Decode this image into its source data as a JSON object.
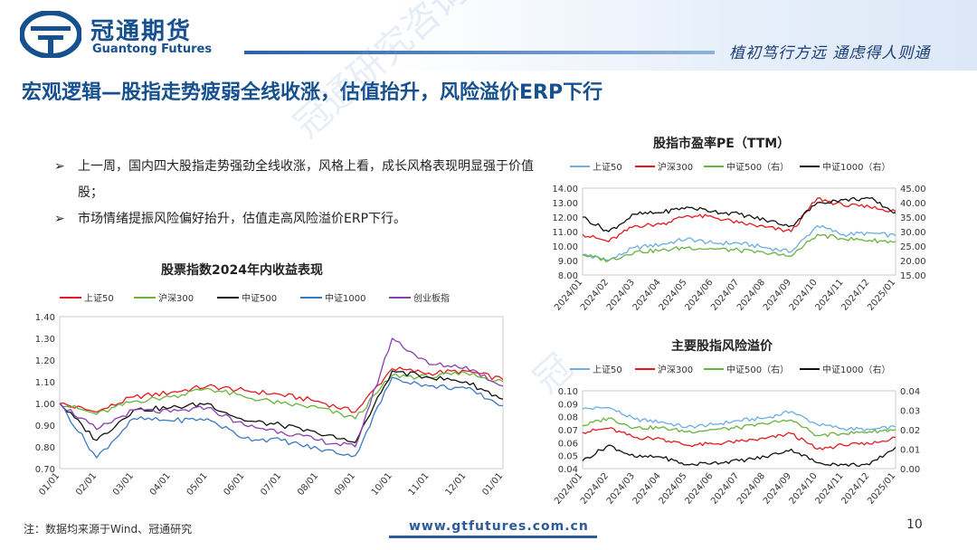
{
  "header": {
    "brand_cn": "冠通期货",
    "brand_en": "Guantong Futures",
    "slogan": "植初笃行方远  通虑得人则通"
  },
  "title": "宏观逻辑—股指走势疲弱全线收涨，估值抬升，风险溢价ERP下行",
  "watermarks": [
    "冠通研究咨询部",
    "冠"
  ],
  "bullets": [
    "上一周，国内四大股指走势强劲全线收涨，风格上看，成长风格表现明显强于价值股；",
    "市场情绪提振风险偏好抬升，估值走高风险溢价ERP下行。"
  ],
  "bullet_marker": "➢",
  "footer": {
    "note": "注：数据均来源于Wind、冠通研究",
    "url": "www.gtfutures.com.cn",
    "page": "10"
  },
  "colors": {
    "brand": "#16508f",
    "sh50": "#e5191f",
    "hs300": "#68b33c",
    "zz500": "#111111",
    "zz1000": "#3b78c1",
    "cyb": "#8a3fb0",
    "sh50_light": "#6aaee3"
  },
  "chart_data": [
    {
      "id": "perf",
      "type": "line",
      "title": "股票指数2024年内收益表现",
      "legend": [
        "上证50",
        "沪深300",
        "中证500",
        "中证1000",
        "创业板指"
      ],
      "categories": [
        "01/01",
        "02/01",
        "03/01",
        "04/01",
        "05/01",
        "06/01",
        "07/01",
        "08/01",
        "09/01",
        "10/01",
        "11/01",
        "12/01",
        "01/01"
      ],
      "ylim": [
        0.7,
        1.4
      ],
      "yticks": [
        "1.40",
        "1.30",
        "1.20",
        "1.10",
        "1.00",
        "0.90",
        "0.80",
        "0.70"
      ],
      "series": [
        {
          "name": "上证50",
          "color": "#e5191f",
          "values": [
            1.0,
            0.96,
            1.03,
            1.05,
            1.08,
            1.06,
            1.04,
            1.01,
            0.96,
            1.16,
            1.14,
            1.15,
            1.11
          ]
        },
        {
          "name": "沪深300",
          "color": "#68b33c",
          "values": [
            1.0,
            0.95,
            1.01,
            1.03,
            1.07,
            1.03,
            1.0,
            0.98,
            0.93,
            1.13,
            1.12,
            1.14,
            1.1
          ]
        },
        {
          "name": "中证500",
          "color": "#111111",
          "values": [
            1.0,
            0.83,
            0.97,
            0.98,
            1.0,
            0.92,
            0.9,
            0.86,
            0.82,
            1.15,
            1.12,
            1.1,
            1.02
          ]
        },
        {
          "name": "中证1000",
          "color": "#3b78c1",
          "values": [
            1.0,
            0.75,
            0.93,
            0.92,
            0.93,
            0.84,
            0.83,
            0.79,
            0.76,
            1.12,
            1.08,
            1.07,
            0.99
          ]
        },
        {
          "name": "创业板指",
          "color": "#8a3fb0",
          "values": [
            1.0,
            0.88,
            0.97,
            0.96,
            0.98,
            0.9,
            0.87,
            0.83,
            0.8,
            1.3,
            1.18,
            1.17,
            1.08
          ]
        }
      ]
    },
    {
      "id": "pe",
      "type": "line",
      "title": "股指市盈率PE（TTM）",
      "legend": [
        "上证50",
        "沪深300",
        "中证500（右）",
        "中证1000（右）"
      ],
      "categories": [
        "2024/01",
        "2024/02",
        "2024/03",
        "2024/04",
        "2024/05",
        "2024/06",
        "2024/07",
        "2024/08",
        "2024/09",
        "2024/10",
        "2024/11",
        "2024/12",
        "2025/01"
      ],
      "ylim_left": [
        8.0,
        14.0
      ],
      "ylim_right": [
        15.0,
        45.0
      ],
      "yticks_left": [
        "14.00",
        "13.00",
        "12.00",
        "11.00",
        "10.00",
        "9.00",
        "8.00"
      ],
      "yticks_right": [
        "45.00",
        "40.00",
        "35.00",
        "30.00",
        "25.00",
        "20.00",
        "15.00"
      ],
      "series": [
        {
          "name": "上证50",
          "color": "#6aaee3",
          "axis": "left",
          "values": [
            9.4,
            9.0,
            9.9,
            10.1,
            10.5,
            10.2,
            10.2,
            9.9,
            9.6,
            11.4,
            10.8,
            10.9,
            10.7
          ]
        },
        {
          "name": "沪深300",
          "color": "#e5191f",
          "axis": "left",
          "values": [
            10.8,
            10.3,
            11.4,
            11.5,
            12.1,
            12.0,
            11.6,
            11.3,
            11.0,
            13.3,
            12.8,
            12.7,
            12.4
          ]
        },
        {
          "name": "中证500（右）",
          "color": "#68b33c",
          "axis": "right",
          "values": [
            22.0,
            20.0,
            23.0,
            23.5,
            24.5,
            24.0,
            23.5,
            22.5,
            21.5,
            29.0,
            27.5,
            27.0,
            26.5
          ]
        },
        {
          "name": "中证1000（右）",
          "color": "#111111",
          "axis": "right",
          "values": [
            35.0,
            30.0,
            36.0,
            36.5,
            38.5,
            37.0,
            36.0,
            34.0,
            32.0,
            40.0,
            41.0,
            41.5,
            36.5
          ]
        }
      ]
    },
    {
      "id": "erp",
      "type": "line",
      "title": "主要股指风险溢价",
      "legend": [
        "上证50",
        "沪深300",
        "中证500（右）",
        "中证1000（右）"
      ],
      "categories": [
        "2024/01",
        "2024/02",
        "2024/03",
        "2024/04",
        "2024/05",
        "2024/06",
        "2024/07",
        "2024/08",
        "2024/09",
        "2024/10",
        "2024/11",
        "2024/12",
        "2025/01"
      ],
      "ylim_left": [
        0.04,
        0.1
      ],
      "ylim_right": [
        0.0,
        0.04
      ],
      "yticks_left": [
        "0.10",
        "0.09",
        "0.08",
        "0.07",
        "0.06",
        "0.05",
        "0.04"
      ],
      "yticks_right": [
        "0.04",
        "0.03",
        "0.02",
        "0.01",
        "0.00"
      ],
      "series": [
        {
          "name": "上证50",
          "color": "#6aaee3",
          "axis": "left",
          "values": [
            0.086,
            0.087,
            0.078,
            0.076,
            0.072,
            0.074,
            0.077,
            0.079,
            0.084,
            0.074,
            0.071,
            0.07,
            0.072
          ]
        },
        {
          "name": "沪深300",
          "color": "#e5191f",
          "axis": "left",
          "values": [
            0.068,
            0.071,
            0.064,
            0.063,
            0.058,
            0.059,
            0.061,
            0.063,
            0.067,
            0.055,
            0.058,
            0.059,
            0.064
          ]
        },
        {
          "name": "中证500（右）",
          "color": "#68b33c",
          "axis": "right",
          "values": [
            0.022,
            0.026,
            0.021,
            0.021,
            0.019,
            0.02,
            0.021,
            0.023,
            0.025,
            0.017,
            0.018,
            0.019,
            0.02
          ]
        },
        {
          "name": "中证1000（右）",
          "color": "#111111",
          "axis": "right",
          "values": [
            0.004,
            0.012,
            0.006,
            0.006,
            0.002,
            0.003,
            0.004,
            0.006,
            0.01,
            0.003,
            0.002,
            0.002,
            0.011
          ]
        }
      ]
    }
  ]
}
